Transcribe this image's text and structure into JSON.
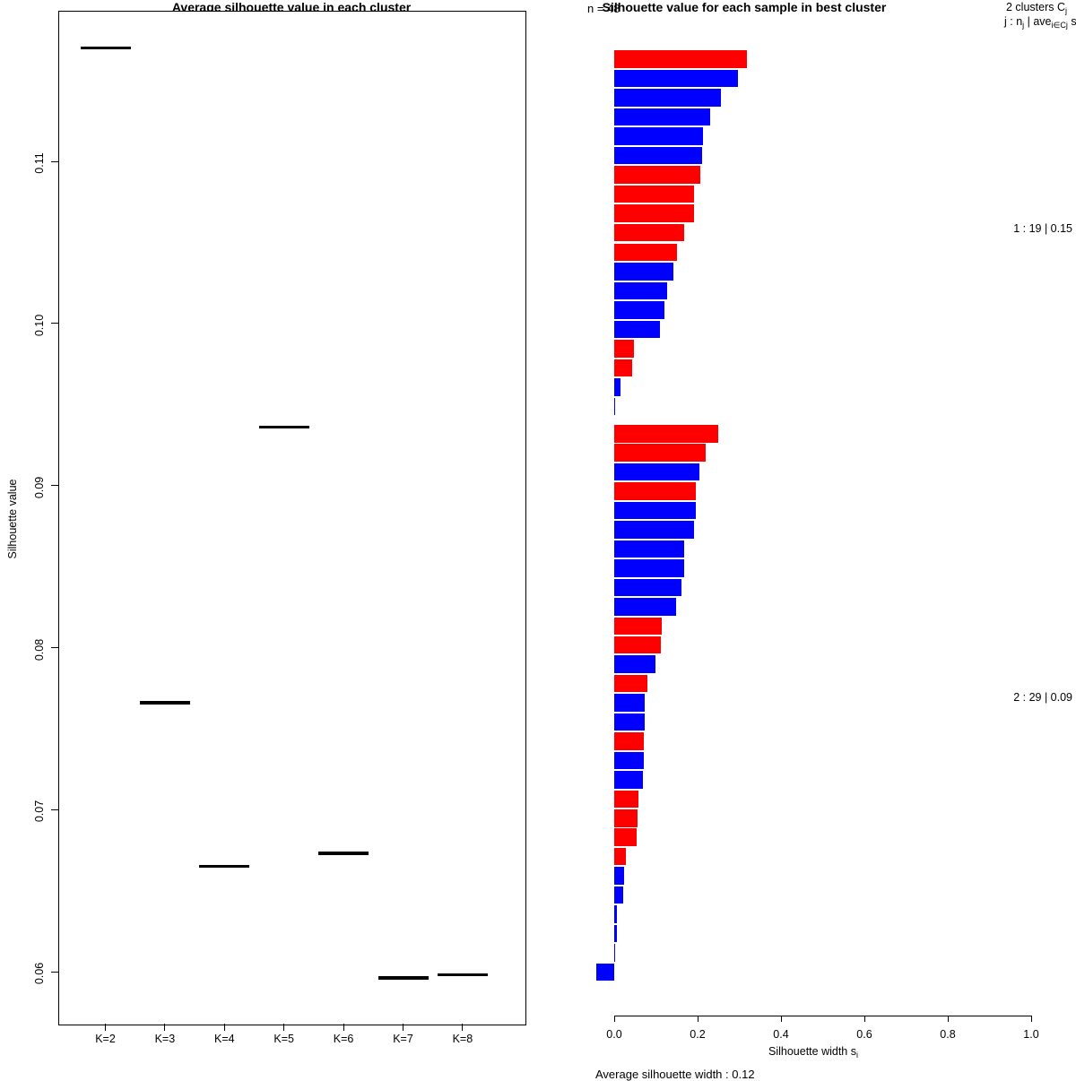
{
  "palette": {
    "red": "#FF0000",
    "blue": "#0000FF",
    "black": "#000000"
  },
  "chart_data": [
    {
      "type": "scatter",
      "title": "Average silhouette value in each cluster",
      "ylabel": "Silhouette value",
      "marker": "horizontal-dash",
      "categories": [
        "K=2",
        "K=3",
        "K=4",
        "K=5",
        "K=6",
        "K=7",
        "K=8"
      ],
      "values": [
        0.117,
        0.0766,
        0.0665,
        0.0936,
        0.0673,
        0.0596,
        0.0598
      ],
      "ylim": [
        0.0568,
        0.1193
      ],
      "ytick_values": [
        0.11,
        0.1,
        0.09,
        0.08,
        0.07,
        0.06
      ],
      "ytick_labels": [
        "0.11",
        "0.10",
        "0.09",
        "0.08",
        "0.07",
        "0.06"
      ],
      "grid": false
    },
    {
      "type": "bar",
      "orientation": "horizontal",
      "title": "Silhouette value for each sample in best cluster",
      "n_label": "n = 48",
      "legend_line1_main": "2  clusters  C",
      "legend_line1_sub": "j",
      "legend_line2_parts": {
        "p1": "j :  n",
        "s1": "j",
        "p2": " | ave",
        "s2": "i∈Cj",
        "p3": "  s"
      },
      "xlabel_main": "Silhouette width s",
      "xlabel_sub": "i",
      "xlim": [
        0,
        1
      ],
      "xtick_values": [
        0,
        0.2,
        0.4,
        0.6,
        0.8,
        1.0
      ],
      "xtick_labels": [
        "0.0",
        "0.2",
        "0.4",
        "0.6",
        "0.8",
        "1.0"
      ],
      "footer": "Average silhouette width :  0.12",
      "clusters": [
        {
          "label": "1 :   19  |  0.15",
          "size": 19,
          "avg_width": 0.15,
          "values": [
            0.318,
            0.297,
            0.256,
            0.23,
            0.213,
            0.211,
            0.206,
            0.191,
            0.191,
            0.168,
            0.151,
            0.142,
            0.127,
            0.12,
            0.11,
            0.047,
            0.043,
            0.015,
            0.003
          ],
          "colors": [
            "red",
            "blue",
            "blue",
            "blue",
            "blue",
            "blue",
            "red",
            "red",
            "red",
            "red",
            "red",
            "blue",
            "blue",
            "blue",
            "blue",
            "red",
            "red",
            "blue",
            "blue"
          ]
        },
        {
          "label": "2 :   29  |  0.09",
          "size": 29,
          "avg_width": 0.09,
          "values": [
            0.249,
            0.219,
            0.204,
            0.196,
            0.196,
            0.191,
            0.168,
            0.168,
            0.161,
            0.148,
            0.114,
            0.112,
            0.099,
            0.08,
            0.073,
            0.073,
            0.072,
            0.071,
            0.069,
            0.057,
            0.055,
            0.053,
            0.028,
            0.023,
            0.021,
            0.006,
            0.006,
            0.002,
            -0.044
          ],
          "colors": [
            "red",
            "red",
            "blue",
            "red",
            "blue",
            "blue",
            "blue",
            "blue",
            "blue",
            "blue",
            "red",
            "red",
            "blue",
            "red",
            "blue",
            "blue",
            "red",
            "blue",
            "blue",
            "red",
            "red",
            "red",
            "red",
            "blue",
            "blue",
            "blue",
            "blue",
            "blue",
            "blue"
          ]
        }
      ]
    }
  ]
}
